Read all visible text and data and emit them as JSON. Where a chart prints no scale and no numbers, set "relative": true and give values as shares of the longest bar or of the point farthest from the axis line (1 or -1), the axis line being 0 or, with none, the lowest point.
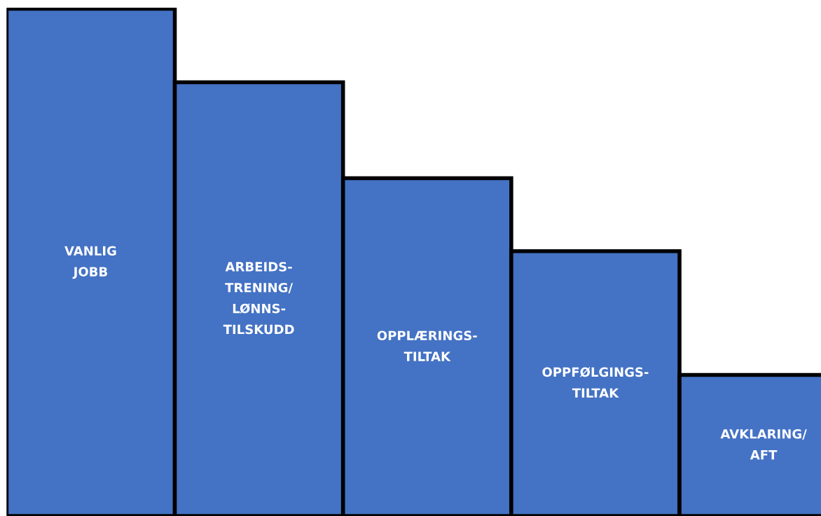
{
  "chart_data": {
    "type": "bar",
    "relative": true,
    "categories": [
      "VANLIG\nJOBB",
      "ARBEIDS-\nTRENING/\nLØNNS-\nTILSKUDD",
      "OPPLÆRINGS-\nTILTAK",
      "OPPFØLGINGS-\nTILTAK",
      "AVKLARING/\nAFT"
    ],
    "values": [
      1,
      0.855,
      0.666,
      0.522,
      0.278
    ],
    "color": "#4472c4"
  }
}
